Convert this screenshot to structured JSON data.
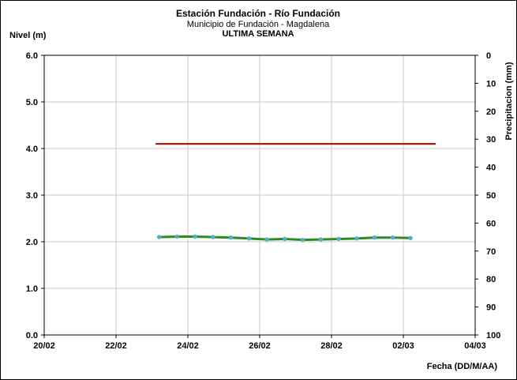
{
  "chart_data": {
    "type": "line",
    "title": "Estación Fundación - Río Fundación",
    "subtitle": "Municipio de Fundación - Magdalena",
    "period_label": "ULTIMA SEMANA",
    "ylabel": "Nivel (m)",
    "y2label": "Precipitacion (mm)",
    "xlabel": "Fecha (DD/M/AA)",
    "x_tick_labels": [
      "20/02",
      "22/02",
      "24/02",
      "26/02",
      "28/02",
      "02/03",
      "04/03"
    ],
    "y_tick_labels": [
      "0.0",
      "1.0",
      "2.0",
      "3.0",
      "4.0",
      "5.0",
      "6.0"
    ],
    "y2_tick_labels": [
      "0",
      "10",
      "20",
      "30",
      "40",
      "50",
      "60",
      "70",
      "80",
      "90",
      "100"
    ],
    "xlim": [
      0,
      12
    ],
    "ylim": [
      0,
      6
    ],
    "y2lim": [
      100,
      0
    ],
    "grid": true,
    "threshold_color": "#c00000",
    "series_color": "#2e8b1e",
    "marker_color": "#4fb0c6",
    "threshold_line": {
      "x": [
        3.1,
        10.9
      ],
      "y": [
        4.1,
        4.1
      ]
    },
    "series": [
      {
        "x": [
          3.2,
          3.7,
          4.2,
          4.7,
          5.2,
          5.7,
          6.2,
          6.7,
          7.2,
          7.7,
          8.2,
          8.7,
          9.2,
          9.7,
          10.2
        ],
        "values": [
          2.1,
          2.11,
          2.11,
          2.1,
          2.09,
          2.07,
          2.05,
          2.06,
          2.04,
          2.05,
          2.06,
          2.07,
          2.09,
          2.09,
          2.08
        ]
      }
    ]
  }
}
